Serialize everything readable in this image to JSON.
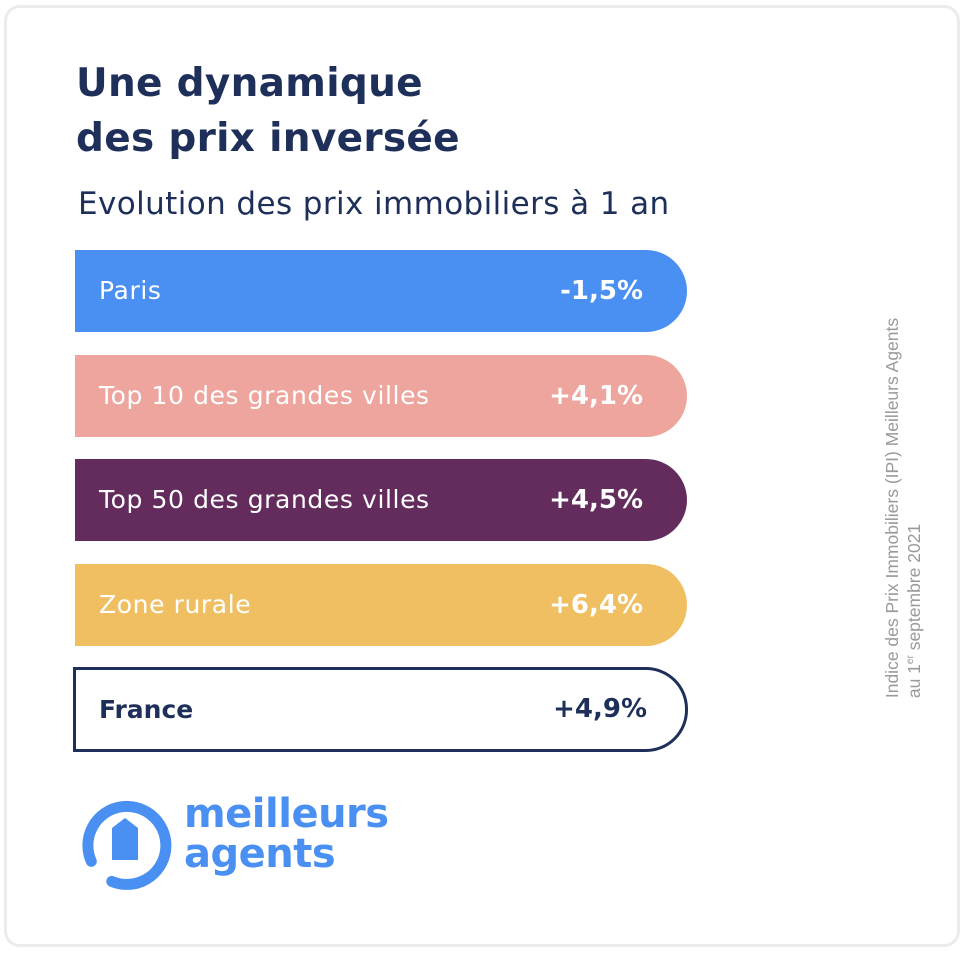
{
  "title": {
    "line1": "Une dynamique",
    "line2": "des prix inversée"
  },
  "subtitle": "Evolution des prix immobiliers à 1 an",
  "chart_data": {
    "type": "bar",
    "orientation": "horizontal",
    "title": "Une dynamique des prix inversée",
    "subtitle": "Evolution des prix immobiliers à 1 an",
    "categories": [
      "Paris",
      "Top 10 des grandes villes",
      "Top 50 des grandes villes",
      "Zone rurale",
      "France"
    ],
    "values": [
      -1.5,
      4.1,
      4.5,
      6.4,
      4.9
    ],
    "value_labels": [
      "-1,5%",
      "+4,1%",
      "+4,5%",
      "+6,4%",
      "+4,9%"
    ],
    "unit": "%",
    "colors": [
      "#4a8ff2",
      "#eda59e",
      "#632c5d",
      "#efbf62",
      "#ffffff"
    ],
    "highlight": "France",
    "xlabel": "",
    "ylabel": ""
  },
  "source": {
    "line1": "Indice des Prix Immobiliers (IPI) Meilleurs Agents",
    "line2_prefix": "au 1",
    "line2_sup": "er",
    "line2_suffix": " septembre 2021"
  },
  "logo": {
    "line1": "meilleurs",
    "line2": "agents",
    "icon": "house-in-ring-icon",
    "color": "#4a8ff2"
  },
  "colors": {
    "navy": "#1e2f5a",
    "card_border": "#ececec",
    "source_text": "#9a9a9a"
  }
}
